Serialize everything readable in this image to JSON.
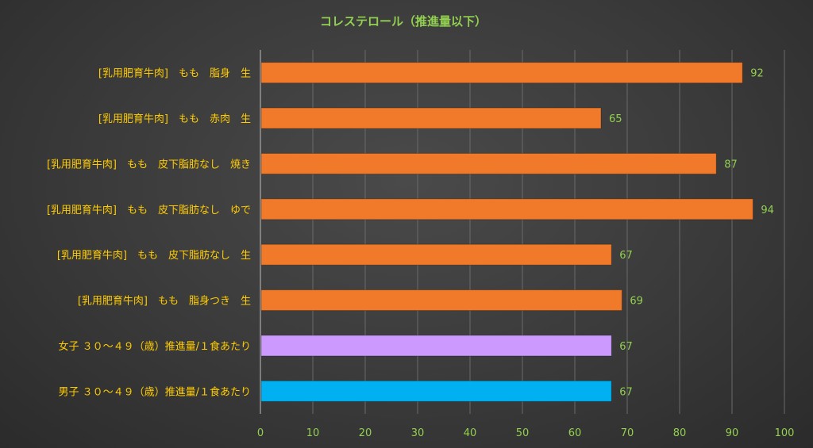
{
  "chart_data": {
    "type": "bar",
    "orientation": "horizontal",
    "title": "コレステロール（推進量以下）",
    "categories": [
      "[乳用肥育牛肉]　もも　脂身　生",
      "[乳用肥育牛肉]　もも　赤肉　生",
      "[乳用肥育牛肉]　もも　皮下脂肪なし　焼き",
      "[乳用肥育牛肉]　もも　皮下脂肪なし　ゆで",
      "[乳用肥育牛肉]　もも　皮下脂肪なし　生",
      "[乳用肥育牛肉]　もも　脂身つき　生",
      "女子 ３０～４９（歳）推進量/１食あたり",
      "男子 ３０～４９（歳）推進量/１食あたり"
    ],
    "values": [
      92,
      65,
      87,
      94,
      67,
      69,
      67,
      67
    ],
    "bar_colors": [
      "#f07a2a",
      "#f07a2a",
      "#f07a2a",
      "#f07a2a",
      "#f07a2a",
      "#f07a2a",
      "#cc99ff",
      "#00b0f0"
    ],
    "xlim": [
      0,
      100
    ],
    "xticks": [
      0,
      10,
      20,
      30,
      40,
      50,
      60,
      70,
      80,
      90,
      100
    ],
    "grid": true,
    "legend": "none",
    "colors": {
      "title": "#92d050",
      "category_label": "#ffcc00",
      "tick_label": "#92d050",
      "data_label": "#92d050",
      "gridline": "#6a6a6a",
      "axis": "#bfbfbf"
    }
  }
}
